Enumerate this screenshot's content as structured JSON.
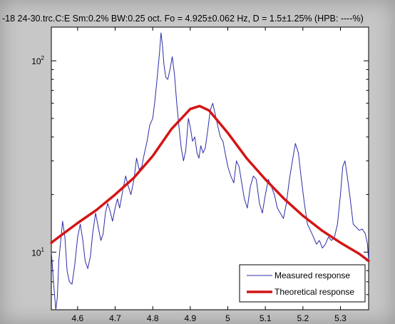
{
  "chart_data": {
    "type": "line",
    "title": "-18 24-30.trc.C:E  Sm:0.2%  BW:0.25 oct.   Fo = 4.925±0.062 Hz,   D = 1.5±1.25%  (HPB: ----%)",
    "xlabel": "",
    "ylabel": "",
    "xlim": [
      4.53,
      5.375
    ],
    "ylim": [
      5,
      150
    ],
    "yscale": "log",
    "grid": false,
    "legend_position": "bottom-right",
    "xticks": [
      4.6,
      4.7,
      4.8,
      4.9,
      5,
      5.1,
      5.2,
      5.3
    ],
    "xtick_labels": [
      "4.6",
      "4.7",
      "4.8",
      "4.9",
      "5",
      "5.1",
      "5.2",
      "5.3"
    ],
    "yticks": [
      {
        "value": 10,
        "base": "10",
        "exp": "1"
      },
      {
        "value": 100,
        "base": "10",
        "exp": "2"
      }
    ],
    "series": [
      {
        "name": "Measured response",
        "color": "#2c2ca8",
        "x": [
          4.53,
          4.537,
          4.542,
          4.546,
          4.55,
          4.555,
          4.56,
          4.566,
          4.572,
          4.578,
          4.585,
          4.592,
          4.6,
          4.607,
          4.614,
          4.62,
          4.627,
          4.634,
          4.64,
          4.648,
          4.655,
          4.662,
          4.668,
          4.674,
          4.68,
          4.686,
          4.693,
          4.7,
          4.706,
          4.712,
          4.72,
          4.728,
          4.735,
          4.742,
          4.75,
          4.757,
          4.764,
          4.771,
          4.778,
          4.785,
          4.792,
          4.8,
          4.806,
          4.812,
          4.818,
          4.822,
          4.826,
          4.83,
          4.835,
          4.84,
          4.846,
          4.852,
          4.858,
          4.864,
          4.87,
          4.876,
          4.882,
          4.888,
          4.895,
          4.9,
          4.906,
          4.912,
          4.918,
          4.923,
          4.928,
          4.934,
          4.94,
          4.947,
          4.953,
          4.96,
          4.967,
          4.974,
          4.98,
          4.987,
          4.993,
          5.0,
          5.008,
          5.016,
          5.023,
          5.03,
          5.037,
          5.044,
          5.052,
          5.06,
          5.068,
          5.076,
          5.084,
          5.092,
          5.1,
          5.108,
          5.116,
          5.124,
          5.132,
          5.14,
          5.148,
          5.156,
          5.164,
          5.172,
          5.18,
          5.188,
          5.196,
          5.204,
          5.212,
          5.22,
          5.228,
          5.236,
          5.244,
          5.252,
          5.26,
          5.268,
          5.276,
          5.284,
          5.292,
          5.3,
          5.306,
          5.312,
          5.318,
          5.326,
          5.334,
          5.342,
          5.35,
          5.358,
          5.366,
          5.372,
          5.375
        ],
        "values": [
          10,
          6.5,
          5,
          5.8,
          9,
          11.5,
          14.5,
          12,
          8,
          7,
          6.8,
          8.5,
          12,
          14,
          11.5,
          9,
          8.2,
          9.5,
          12.5,
          16,
          13.5,
          11.5,
          12.5,
          16,
          18,
          16.5,
          14.5,
          17,
          19,
          17,
          21,
          25,
          22,
          20,
          24,
          31,
          27,
          28,
          33,
          38,
          46,
          50,
          62,
          82,
          110,
          140,
          120,
          95,
          82,
          80,
          90,
          105,
          85,
          60,
          45,
          35,
          30,
          34,
          50,
          45,
          38,
          40,
          33,
          31,
          36,
          33,
          35,
          44,
          55,
          60,
          52,
          45,
          40,
          38,
          33,
          28,
          25,
          23,
          30,
          28,
          23,
          19,
          17,
          22,
          25,
          24,
          18,
          16,
          20,
          24,
          22,
          20,
          17,
          16,
          15,
          18,
          24,
          30,
          37,
          33,
          24,
          18,
          14,
          13,
          12,
          11,
          11.5,
          10.5,
          11,
          12,
          11.5,
          12,
          14,
          20,
          28,
          30,
          25,
          19,
          14,
          13.5,
          13,
          13.2,
          12.5,
          11,
          9
        ]
      },
      {
        "name": "Theoretical response",
        "color": "#d41515",
        "x": [
          4.53,
          4.55,
          4.6,
          4.65,
          4.7,
          4.75,
          4.8,
          4.85,
          4.9,
          4.925,
          4.95,
          5.0,
          5.05,
          5.1,
          5.15,
          5.2,
          5.25,
          5.3,
          5.35,
          5.375
        ],
        "values": [
          11.2,
          12.0,
          14.2,
          16.6,
          20.0,
          24.5,
          31.8,
          44.0,
          56.0,
          58.0,
          55.0,
          42.0,
          31.0,
          24.0,
          19.0,
          15.5,
          13.0,
          11.2,
          9.8,
          9.0
        ]
      }
    ]
  }
}
